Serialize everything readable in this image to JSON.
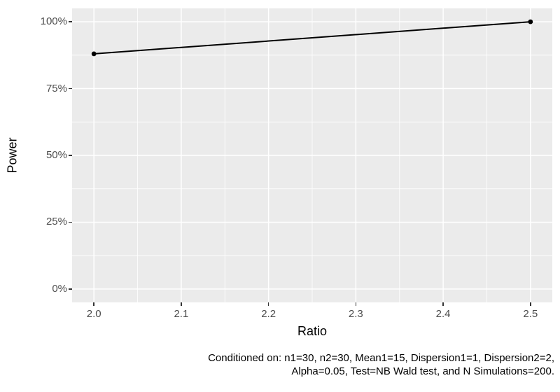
{
  "figure": {
    "background": "#FFFFFF",
    "caption": {
      "line1": "Conditioned on: n1=30, n2=30, Mean1=15, Dispersion1=1, Dispersion2=2,",
      "line2": "Alpha=0.05, Test=NB Wald test, and N Simulations=200."
    }
  },
  "chart_data": {
    "type": "line",
    "title": "",
    "xlabel": "Ratio",
    "ylabel": "Power",
    "x": [
      2.0,
      2.5
    ],
    "series": [
      {
        "name": "Power",
        "values": [
          0.88,
          1.0
        ]
      }
    ],
    "xlim": [
      2.0,
      2.5
    ],
    "ylim": [
      0,
      1
    ],
    "expansion": 0.05,
    "x_ticks": {
      "values": [
        2.0,
        2.1,
        2.2,
        2.3,
        2.4,
        2.5
      ],
      "labels": [
        "2.0",
        "2.1",
        "2.2",
        "2.3",
        "2.4",
        "2.5"
      ]
    },
    "y_ticks": {
      "values": [
        0,
        0.25,
        0.5,
        0.75,
        1.0
      ],
      "labels": [
        "0%",
        "25%",
        "50%",
        "75%",
        "100%"
      ]
    },
    "grid": "major+minor",
    "legend": "none",
    "colors": {
      "panel_bg": "#EBEBEB",
      "grid": "#FFFFFF",
      "line": "#000000",
      "point": "#000000",
      "tick_label": "#4D4D4D",
      "tick_mark": "#333333",
      "axis_title": "#000000",
      "caption": "#000000"
    }
  }
}
